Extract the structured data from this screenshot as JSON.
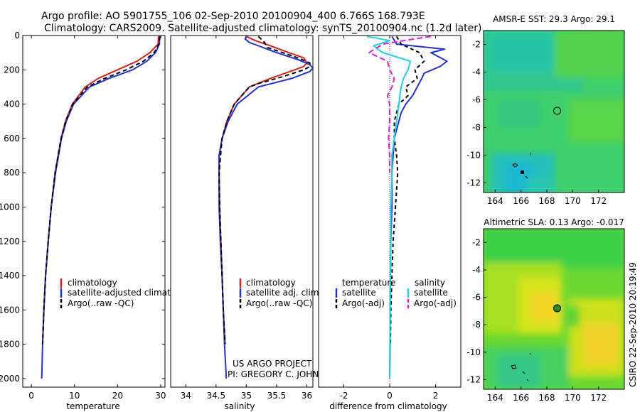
{
  "header": {
    "title_line1": "Argo profile: AO 5901755_106 02-Sep-2010 20100904_400 6.766S 168.793E",
    "title_line2": "Climatology: CARS2009. Satellite-adjusted climatology: synTS_20100904.nc (1.2d later)"
  },
  "credits": {
    "project": "US ARGO PROJECT",
    "pi": "PI: GREGORY C. JOHNSON",
    "stamp": "CSIRO 22-Sep-2010 20:19:49"
  },
  "colors": {
    "climatology": "#d42020",
    "satellite": "#2233cc",
    "argo": "#000000",
    "satellite_salinity": "#22d0e0",
    "argo_salinity": "#e020d0"
  },
  "chart_data": [
    {
      "type": "line",
      "id": "temperature",
      "xlabel": "temperature",
      "xlim": [
        -2,
        31
      ],
      "ylim": [
        2050,
        0
      ],
      "xticks": [
        0,
        10,
        20,
        30
      ],
      "xtick_labels": [
        "0",
        "10",
        "20",
        "30"
      ],
      "yticks": [
        0,
        200,
        400,
        600,
        800,
        1000,
        1200,
        1400,
        1600,
        1800,
        2000
      ],
      "ytick_labels": [
        "0",
        "200",
        "400",
        "600",
        "800",
        "1000",
        "1200",
        "1400",
        "1600",
        "1800",
        "2000"
      ],
      "legend": [
        "climatology",
        "satellite-adjusted climatology",
        "Argo(..raw -QC)"
      ],
      "series": [
        {
          "name": "climatology",
          "color": "#d42020",
          "dash": "",
          "depth": [
            5,
            50,
            100,
            150,
            200,
            250,
            300,
            400,
            500,
            600,
            800,
            1000,
            1200,
            1400,
            1600,
            1800
          ],
          "values": [
            29.5,
            29.4,
            27.5,
            24.5,
            20.0,
            15.5,
            12.5,
            9.5,
            7.9,
            6.9,
            5.5,
            4.6,
            3.9,
            3.3,
            2.9,
            2.6
          ]
        },
        {
          "name": "satellite",
          "color": "#2233cc",
          "dash": "",
          "depth": [
            5,
            50,
            100,
            150,
            200,
            250,
            300,
            400,
            500,
            600,
            800,
            1000,
            1200,
            1400,
            1600,
            1800,
            2000
          ],
          "values": [
            29.8,
            29.7,
            28.8,
            26.8,
            23.5,
            18.0,
            13.5,
            9.8,
            8.1,
            7.0,
            5.6,
            4.6,
            3.9,
            3.3,
            2.9,
            2.6,
            2.4
          ]
        },
        {
          "name": "argo",
          "color": "#000000",
          "dash": "6,4",
          "depth": [
            5,
            50,
            100,
            150,
            200,
            250,
            300,
            400,
            500,
            600,
            800,
            1000,
            1200,
            1400,
            1600,
            1800
          ],
          "values": [
            29.8,
            29.6,
            28.5,
            26.0,
            22.0,
            17.0,
            13.0,
            9.6,
            8.0,
            6.9,
            5.5,
            4.6,
            3.9,
            3.3,
            2.9,
            2.6
          ]
        }
      ]
    },
    {
      "type": "line",
      "id": "salinity",
      "xlabel": "salinity",
      "xlim": [
        33.75,
        36.1
      ],
      "ylim": [
        2050,
        0
      ],
      "xticks": [
        34,
        34.5,
        35,
        35.5,
        36
      ],
      "xtick_labels": [
        "34",
        "34.5",
        "35",
        "35.5",
        "36"
      ],
      "legend": [
        "climatology",
        "satellite adj. clim.",
        "Argo(..raw -QC)"
      ],
      "series": [
        {
          "name": "climatology",
          "color": "#d42020",
          "dash": "",
          "depth": [
            5,
            30,
            60,
            100,
            130,
            160,
            180,
            200,
            250,
            300,
            400,
            500,
            600,
            700,
            800,
            1000,
            1200,
            1400,
            1600,
            1800
          ],
          "values": [
            35.0,
            35.15,
            35.4,
            35.7,
            35.95,
            36.0,
            35.95,
            35.8,
            35.4,
            35.05,
            34.8,
            34.68,
            34.6,
            34.55,
            34.55,
            34.56,
            34.58,
            34.6,
            34.62,
            34.65
          ]
        },
        {
          "name": "satellite",
          "color": "#2233cc",
          "dash": "",
          "depth": [
            5,
            20,
            40,
            60,
            100,
            140,
            170,
            190,
            210,
            250,
            300,
            400,
            500,
            600,
            700,
            800,
            1000,
            1200,
            1400,
            1600,
            1800,
            2000
          ],
          "values": [
            35.0,
            34.98,
            35.05,
            35.2,
            35.5,
            35.85,
            36.05,
            36.1,
            36.05,
            35.75,
            35.2,
            34.85,
            34.7,
            34.6,
            34.55,
            34.55,
            34.55,
            34.57,
            34.6,
            34.62,
            34.64,
            34.67
          ]
        },
        {
          "name": "argo",
          "color": "#000000",
          "dash": "6,4",
          "depth": [
            5,
            40,
            70,
            100,
            130,
            160,
            180,
            200,
            240,
            280,
            300,
            400,
            500,
            600,
            800,
            1000,
            1200,
            1400,
            1600,
            1800
          ],
          "values": [
            35.2,
            35.3,
            35.35,
            35.6,
            35.85,
            36.05,
            36.05,
            35.95,
            35.6,
            35.2,
            35.05,
            34.8,
            34.68,
            34.6,
            34.55,
            34.56,
            34.58,
            34.6,
            34.62,
            34.65
          ]
        }
      ]
    },
    {
      "type": "line",
      "id": "difference",
      "xlabel": "difference from climatology",
      "xlim": [
        -3.1,
        3.1
      ],
      "ylim": [
        2050,
        0
      ],
      "xticks": [
        -2,
        0,
        2
      ],
      "xtick_labels": [
        "-2",
        "0",
        "2"
      ],
      "legend_headers": [
        "temperature",
        "salinity"
      ],
      "legend": [
        "satellite",
        "Argo(-adj)",
        "satellite",
        "Argo(-adj)"
      ],
      "series": [
        {
          "name": "temperature satellite",
          "color": "#2233cc",
          "dash": "",
          "depth": [
            5,
            50,
            80,
            100,
            150,
            180,
            220,
            250,
            300,
            350,
            400,
            450,
            500,
            600,
            800,
            1000,
            1200,
            1400,
            1600,
            1800,
            2000
          ],
          "values": [
            0.1,
            0.3,
            2.4,
            1.8,
            2.5,
            2.2,
            1.5,
            1.4,
            1.2,
            1.0,
            0.7,
            0.5,
            0.4,
            0.2,
            0.1,
            0.1,
            0.05,
            0.03,
            0.02,
            0.02,
            0.0
          ]
        },
        {
          "name": "temperature argo",
          "color": "#000000",
          "dash": "5,4",
          "depth": [
            5,
            50,
            100,
            150,
            200,
            250,
            300,
            350,
            400,
            500,
            600,
            700,
            800,
            900,
            1000,
            1100,
            1200,
            1400,
            1600,
            1800
          ],
          "values": [
            0.3,
            0.5,
            1.3,
            1.5,
            1.1,
            1.2,
            0.7,
            0.8,
            0.4,
            0.2,
            0.2,
            0.3,
            0.35,
            0.3,
            0.25,
            0.2,
            0.15,
            0.1,
            0.05,
            0.03
          ]
        },
        {
          "name": "salinity satellite",
          "color": "#22d0e0",
          "dash": "",
          "depth": [
            5,
            30,
            60,
            100,
            150,
            200,
            250,
            300,
            400,
            500,
            600,
            700,
            800,
            1000,
            1200,
            1400,
            1600,
            1800,
            2000
          ],
          "values": [
            -1.0,
            0.0,
            -0.7,
            -0.3,
            0.9,
            0.8,
            0.6,
            0.5,
            0.4,
            0.3,
            0.2,
            0.1,
            0.1,
            0.05,
            0.05,
            0.03,
            0.02,
            0.01,
            0.0
          ]
        },
        {
          "name": "salinity argo",
          "color": "#e020d0",
          "dash": "8,4",
          "depth": [
            5,
            30,
            50,
            100,
            150,
            200,
            250,
            300,
            350,
            400,
            500,
            600,
            700,
            800
          ],
          "values": [
            1.8,
            0.6,
            -0.3,
            -0.9,
            -0.1,
            0.0,
            0.2,
            0.1,
            -0.1,
            0.0,
            0.0,
            -0.05,
            0.0,
            0.0
          ]
        }
      ]
    }
  ],
  "maps": [
    {
      "id": "sst-map",
      "title": "AMSR-E SST: 29.3 Argo: 29.1",
      "xticks": [
        "164",
        "166",
        "168",
        "170",
        "172"
      ],
      "yticks": [
        "-2",
        "-4",
        "-6",
        "-8",
        "-10",
        "-12"
      ],
      "argo_lon": 168.8,
      "argo_lat": -6.8,
      "marker_fill": "none"
    },
    {
      "id": "sla-map",
      "title": "Altimetric SLA: 0.13 Argo: -0.017",
      "xticks": [
        "164",
        "166",
        "168",
        "170",
        "172"
      ],
      "yticks": [
        "-2",
        "-4",
        "-6",
        "-8",
        "-10",
        "-12"
      ],
      "argo_lon": 168.8,
      "argo_lat": -6.8,
      "marker_fill": "#2e8b20"
    }
  ]
}
